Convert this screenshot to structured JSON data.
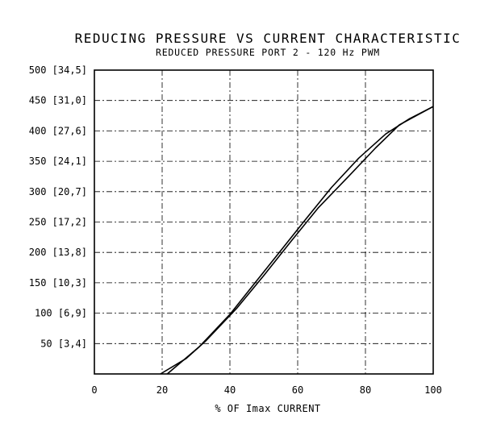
{
  "chart_data": {
    "type": "line",
    "title": "REDUCING PRESSURE VS CURRENT CHARACTERISTIC",
    "subtitle": "REDUCED PRESSURE PORT 2 - 120 Hz PWM",
    "xlabel": "% OF Imax CURRENT",
    "ylabel": "",
    "xlim": [
      0,
      100
    ],
    "ylim": [
      0,
      500
    ],
    "grid": true,
    "x_ticks": [
      {
        "value": 0,
        "label": "0"
      },
      {
        "value": 20,
        "label": "20"
      },
      {
        "value": 40,
        "label": "40"
      },
      {
        "value": 60,
        "label": "60"
      },
      {
        "value": 80,
        "label": "80"
      },
      {
        "value": 100,
        "label": "100"
      }
    ],
    "y_ticks": [
      {
        "value": 50,
        "label": "50 [3,4]"
      },
      {
        "value": 100,
        "label": "100 [6,9]"
      },
      {
        "value": 150,
        "label": "150 [10,3]"
      },
      {
        "value": 200,
        "label": "200 [13,8]"
      },
      {
        "value": 250,
        "label": "250 [17,2]"
      },
      {
        "value": 300,
        "label": "300 [20,7]"
      },
      {
        "value": 350,
        "label": "350 [24,1]"
      },
      {
        "value": 400,
        "label": "400 [27,6]"
      },
      {
        "value": 450,
        "label": "450 [31,0]"
      },
      {
        "value": 500,
        "label": "500 [34,5]"
      }
    ],
    "series": [
      {
        "x": [
          19.5,
          27,
          33,
          42,
          50,
          58,
          66,
          75,
          83,
          90,
          100
        ],
        "y": [
          0,
          25,
          55,
          108,
          162,
          218,
          273,
          325,
          372,
          410,
          440
        ]
      },
      {
        "x": [
          21.5,
          31,
          40,
          46,
          54,
          62,
          70,
          78,
          86,
          93,
          100
        ],
        "y": [
          0,
          45,
          98,
          140,
          196,
          252,
          307,
          355,
          395,
          420,
          440
        ]
      }
    ],
    "colors": {
      "line": "#000000",
      "grid": "#000000",
      "background": "#ffffff"
    }
  }
}
